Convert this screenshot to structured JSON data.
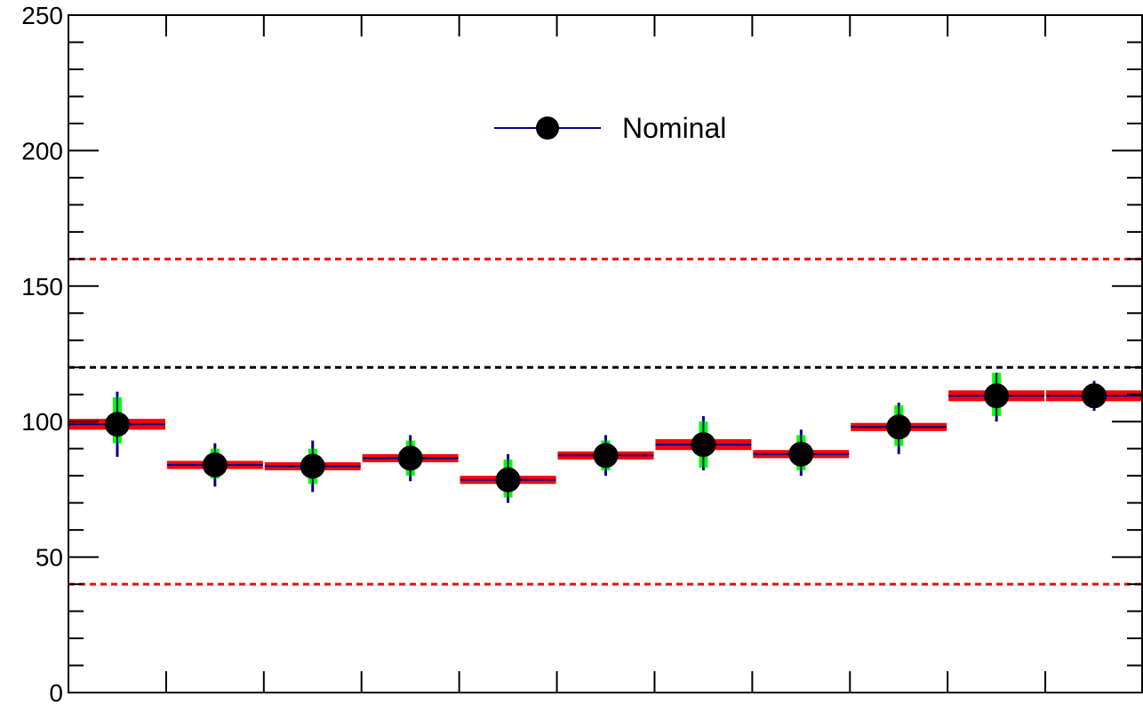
{
  "chart_data": {
    "type": "scatter",
    "ylim": [
      0,
      250
    ],
    "y_ticks": [
      "0",
      "50",
      "100",
      "150",
      "200",
      "250"
    ],
    "bins": 11,
    "legend": {
      "label": "Nominal",
      "placement": "top-center"
    },
    "reference_lines": [
      {
        "y": 160,
        "color": "#ff0000",
        "style": "dotted"
      },
      {
        "y": 120,
        "color": "#000000",
        "style": "dotted"
      },
      {
        "y": 40,
        "color": "#ff0000",
        "style": "dotted"
      }
    ],
    "series": [
      {
        "name": "Nominal",
        "marker": "circle",
        "marker_color": "#000000",
        "line_color": "#00008b",
        "values": [
          99.0,
          84.0,
          83.5,
          86.5,
          78.5,
          87.5,
          91.5,
          88.0,
          98.0,
          109.5,
          109.5
        ],
        "stat_low": [
          92,
          79,
          77,
          80,
          72,
          82,
          83,
          82,
          91,
          102,
          105
        ],
        "stat_high": [
          109,
          90,
          90,
          93,
          86,
          93,
          100,
          95,
          106,
          118,
          114
        ],
        "tot_low": [
          87,
          76,
          74,
          78,
          70,
          80,
          82,
          80,
          88,
          100,
          104
        ],
        "tot_high": [
          111,
          92,
          93,
          95,
          88,
          95,
          102,
          97,
          107,
          118,
          115
        ],
        "syst_band_low": [
          97,
          82.5,
          82,
          85,
          77,
          86,
          89.5,
          86.5,
          96.5,
          107.5,
          107.5
        ],
        "syst_band_high": [
          101,
          85.5,
          85,
          88,
          80,
          89,
          93.5,
          89.5,
          99.5,
          111.5,
          111.5
        ]
      }
    ],
    "colors": {
      "band": "#ff0000",
      "stat_error": "#00ff00",
      "total_error": "#00008b",
      "frame": "#000000"
    }
  }
}
